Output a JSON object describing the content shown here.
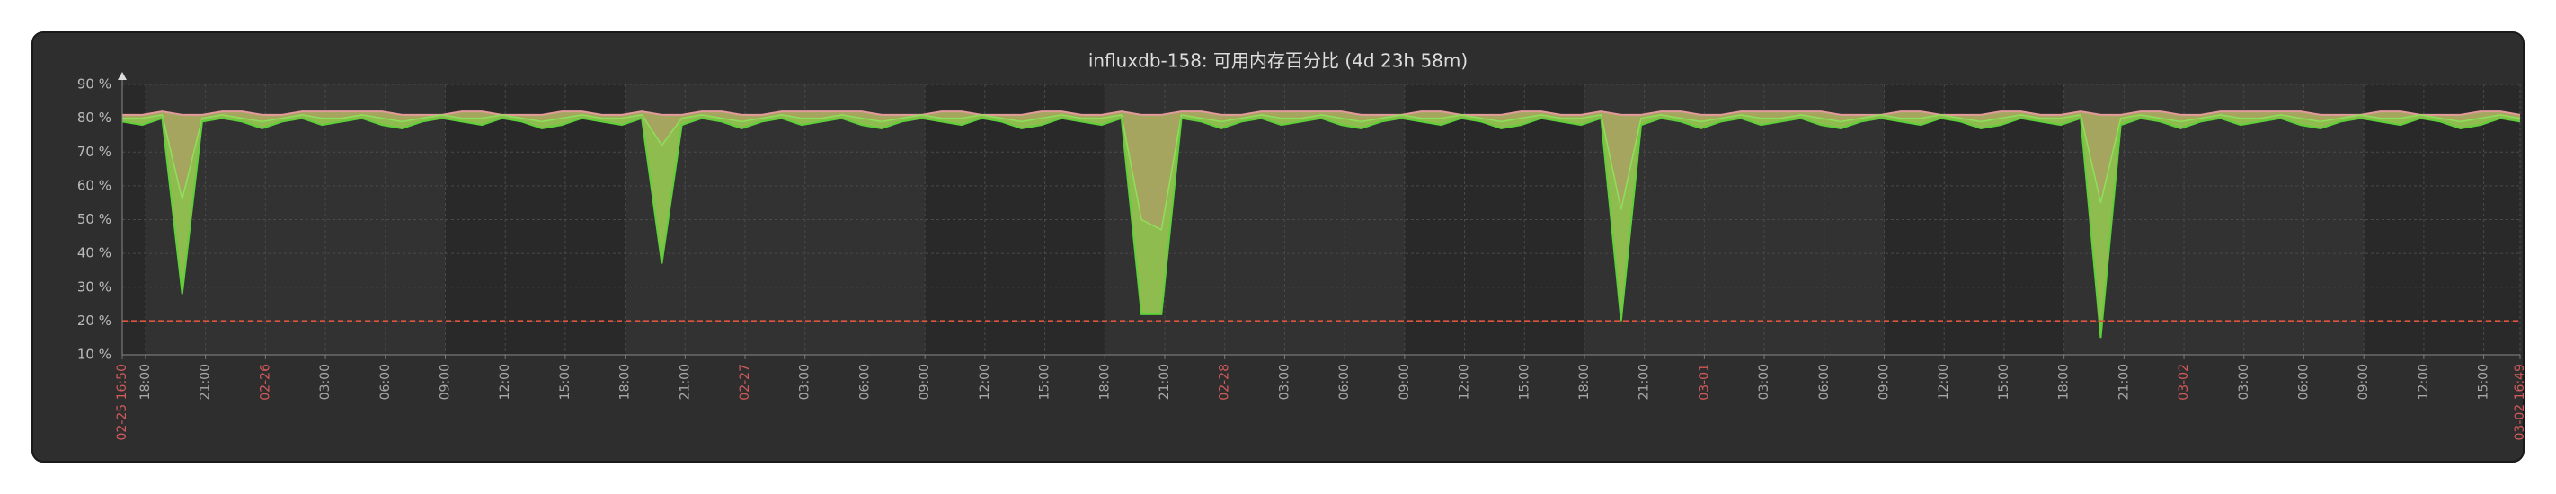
{
  "chart_data": {
    "type": "line",
    "title": "influxdb-158: 可用内存百分比 (4d 23h 58m)",
    "x": [
      0,
      60,
      120,
      180,
      240,
      300,
      360,
      420,
      480,
      540,
      600,
      660,
      720,
      780,
      840,
      900,
      960,
      1020,
      1080,
      1140,
      1200,
      1260,
      1320,
      1380,
      1440,
      1500,
      1560,
      1620,
      1680,
      1740,
      1800,
      1860,
      1920,
      1980,
      2040,
      2100,
      2160,
      2220,
      2280,
      2340,
      2400,
      2460,
      2520,
      2580,
      2640,
      2700,
      2760,
      2820,
      2880,
      2940,
      3000,
      3060,
      3120,
      3180,
      3240,
      3300,
      3360,
      3420,
      3480,
      3540,
      3600,
      3660,
      3720,
      3780,
      3840,
      3900,
      3960,
      4020,
      4080,
      4140,
      4200,
      4260,
      4320,
      4380,
      4440,
      4500,
      4560,
      4620,
      4680,
      4740,
      4800,
      4860,
      4920,
      4980,
      5040,
      5100,
      5160,
      5220,
      5280,
      5340,
      5400,
      5460,
      5520,
      5580,
      5640,
      5700,
      5760,
      5820,
      5880,
      5940,
      6000,
      6060,
      6120,
      6180,
      6240,
      6300,
      6360,
      6420,
      6480,
      6540,
      6600,
      6660,
      6720,
      6780,
      6840,
      6900,
      6960,
      7020,
      7080,
      7140,
      7199
    ],
    "series": [
      {
        "color": "#e29a9a",
        "values": [
          81,
          81,
          82,
          81,
          81,
          82,
          82,
          81,
          81,
          82,
          82,
          82,
          82,
          82,
          81,
          81,
          81,
          82,
          82,
          81,
          81,
          81,
          82,
          82,
          81,
          81,
          82,
          81,
          81,
          82,
          82,
          81,
          81,
          82,
          82,
          82,
          82,
          82,
          81,
          81,
          81,
          82,
          82,
          81,
          81,
          81,
          82,
          82,
          81,
          81,
          82,
          81,
          81,
          82,
          82,
          81,
          81,
          82,
          82,
          82,
          82,
          82,
          81,
          81,
          81,
          82,
          82,
          81,
          81,
          81,
          82,
          82,
          81,
          81,
          82,
          81,
          81,
          82,
          82,
          81,
          81,
          82,
          82,
          82,
          82,
          82,
          81,
          81,
          81,
          82,
          82,
          81,
          81,
          81,
          82,
          82,
          81,
          81,
          82,
          81,
          81,
          82,
          82,
          81,
          81,
          82,
          82,
          82,
          82,
          82,
          81,
          81,
          81,
          82,
          82,
          81,
          81,
          81,
          82,
          82,
          81
        ]
      },
      {
        "color": "#8ee05a",
        "values": [
          80,
          80,
          81,
          56,
          80,
          81,
          80,
          79,
          80,
          81,
          80,
          80,
          81,
          80,
          79,
          80,
          81,
          80,
          80,
          81,
          80,
          79,
          80,
          81,
          80,
          80,
          81,
          72,
          80,
          81,
          80,
          79,
          80,
          81,
          80,
          80,
          81,
          80,
          79,
          80,
          81,
          80,
          80,
          81,
          80,
          79,
          80,
          81,
          80,
          80,
          81,
          50,
          47,
          81,
          80,
          79,
          80,
          81,
          80,
          80,
          81,
          80,
          79,
          80,
          81,
          80,
          80,
          81,
          80,
          79,
          80,
          81,
          80,
          80,
          81,
          53,
          80,
          81,
          80,
          79,
          80,
          81,
          80,
          80,
          81,
          80,
          79,
          80,
          81,
          80,
          80,
          81,
          80,
          79,
          80,
          81,
          80,
          80,
          81,
          55,
          80,
          81,
          80,
          79,
          80,
          81,
          80,
          80,
          81,
          80,
          79,
          80,
          81,
          80,
          80,
          81,
          80,
          79,
          80,
          81,
          80
        ]
      },
      {
        "color": "#5fcf3a",
        "values": [
          79,
          78,
          80,
          28,
          79,
          80,
          79,
          77,
          79,
          80,
          78,
          79,
          80,
          78,
          77,
          79,
          80,
          79,
          78,
          80,
          79,
          77,
          78,
          80,
          79,
          78,
          80,
          37,
          78,
          80,
          79,
          77,
          79,
          80,
          78,
          79,
          80,
          78,
          77,
          79,
          80,
          79,
          78,
          80,
          79,
          77,
          78,
          80,
          79,
          78,
          80,
          22,
          22,
          80,
          79,
          77,
          79,
          80,
          78,
          79,
          80,
          78,
          77,
          79,
          80,
          79,
          78,
          80,
          79,
          77,
          78,
          80,
          79,
          78,
          80,
          20,
          78,
          80,
          79,
          77,
          79,
          80,
          78,
          79,
          80,
          78,
          77,
          79,
          80,
          79,
          78,
          80,
          79,
          77,
          78,
          80,
          79,
          78,
          80,
          15,
          78,
          80,
          79,
          77,
          79,
          80,
          78,
          79,
          80,
          78,
          77,
          79,
          80,
          79,
          78,
          80,
          79,
          77,
          78,
          80,
          79
        ]
      }
    ],
    "fill_colors": [
      "#a5a55f",
      "#8fbc4e"
    ],
    "trigger": {
      "value": 20,
      "color": "#e0533d"
    },
    "shaded_periods": [
      [
        0,
        70
      ],
      [
        970,
        1510
      ],
      [
        2410,
        2950
      ],
      [
        3850,
        4390
      ],
      [
        5290,
        5830
      ],
      [
        6730,
        7199
      ]
    ],
    "shaded_color": "#292929",
    "plot_color": "#323232",
    "xlim": [
      0,
      7199
    ],
    "xticks": [
      {
        "value": 0,
        "label": "02-25 16:50"
      },
      {
        "value": 70,
        "label": "18:00"
      },
      {
        "value": 250,
        "label": "21:00"
      },
      {
        "value": 430,
        "label": "02-26"
      },
      {
        "value": 610,
        "label": "03:00"
      },
      {
        "value": 790,
        "label": "06:00"
      },
      {
        "value": 970,
        "label": "09:00"
      },
      {
        "value": 1150,
        "label": "12:00"
      },
      {
        "value": 1330,
        "label": "15:00"
      },
      {
        "value": 1510,
        "label": "18:00"
      },
      {
        "value": 1690,
        "label": "21:00"
      },
      {
        "value": 1870,
        "label": "02-27"
      },
      {
        "value": 2050,
        "label": "03:00"
      },
      {
        "value": 2230,
        "label": "06:00"
      },
      {
        "value": 2410,
        "label": "09:00"
      },
      {
        "value": 2590,
        "label": "12:00"
      },
      {
        "value": 2770,
        "label": "15:00"
      },
      {
        "value": 2950,
        "label": "18:00"
      },
      {
        "value": 3130,
        "label": "21:00"
      },
      {
        "value": 3310,
        "label": "02-28"
      },
      {
        "value": 3490,
        "label": "03:00"
      },
      {
        "value": 3670,
        "label": "06:00"
      },
      {
        "value": 3850,
        "label": "09:00"
      },
      {
        "value": 4030,
        "label": "12:00"
      },
      {
        "value": 4210,
        "label": "15:00"
      },
      {
        "value": 4390,
        "label": "18:00"
      },
      {
        "value": 4570,
        "label": "21:00"
      },
      {
        "value": 4750,
        "label": "03-01"
      },
      {
        "value": 4930,
        "label": "03:00"
      },
      {
        "value": 5110,
        "label": "06:00"
      },
      {
        "value": 5290,
        "label": "09:00"
      },
      {
        "value": 5470,
        "label": "12:00"
      },
      {
        "value": 5650,
        "label": "15:00"
      },
      {
        "value": 5830,
        "label": "18:00"
      },
      {
        "value": 6010,
        "label": "21:00"
      },
      {
        "value": 6190,
        "label": "03-02"
      },
      {
        "value": 6370,
        "label": "03:00"
      },
      {
        "value": 6550,
        "label": "06:00"
      },
      {
        "value": 6730,
        "label": "09:00"
      },
      {
        "value": 6910,
        "label": "12:00"
      },
      {
        "value": 7090,
        "label": "15:00"
      },
      {
        "value": 7199,
        "label": "03-02 16:49"
      }
    ],
    "date_label_color": "#d05a5a",
    "time_label_color": "#a8a8a8",
    "ylim": [
      10,
      90
    ],
    "yticks": [
      {
        "value": 10,
        "label": "10 %"
      },
      {
        "value": 20,
        "label": "20 %"
      },
      {
        "value": 30,
        "label": "30 %"
      },
      {
        "value": 40,
        "label": "40 %"
      },
      {
        "value": 50,
        "label": "50 %"
      },
      {
        "value": 60,
        "label": "60 %"
      },
      {
        "value": 70,
        "label": "70 %"
      },
      {
        "value": 80,
        "label": "80 %"
      },
      {
        "value": 90,
        "label": "90 %"
      }
    ],
    "grid": true
  }
}
